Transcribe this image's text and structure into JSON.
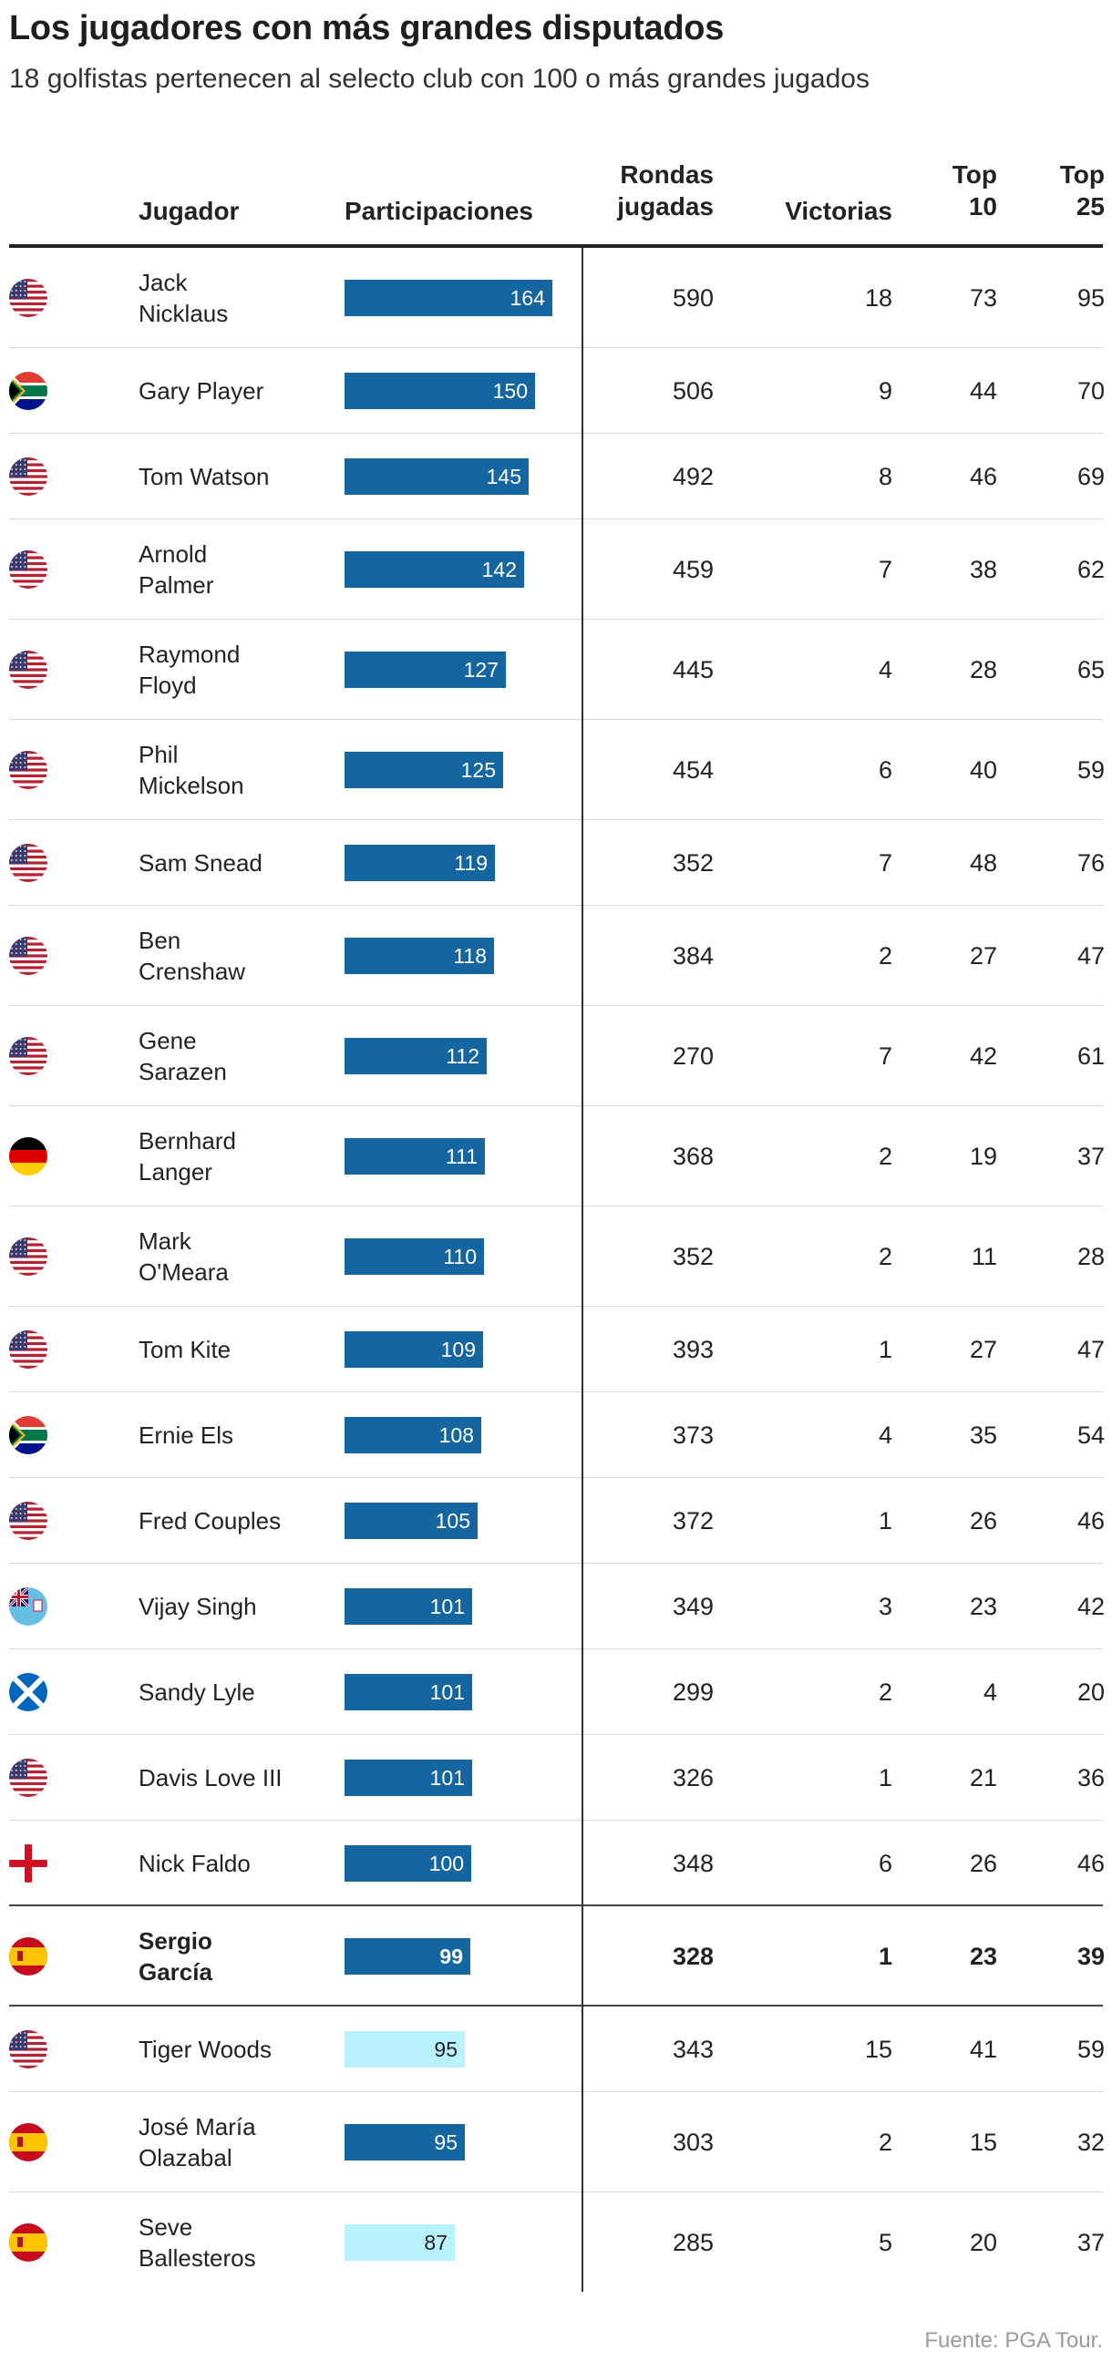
{
  "title": "Los jugadores con más grandes disputados",
  "subtitle": "18 golfistas pertenecen al selecto club con 100 o más grandes jugados",
  "source": "Fuente: PGA Tour.",
  "colors": {
    "bar": "#1565a0",
    "bar_highlight": "#b8f2fc"
  },
  "columns": {
    "jugador": "Jugador",
    "participaciones": "Participaciones",
    "rondas_1": "Rondas",
    "rondas_2": "jugadas",
    "victorias": "Victorias",
    "top10_1": "Top",
    "top10_2": "10",
    "top25_1": "Top",
    "top25_2": "25"
  },
  "chart_data": {
    "type": "table",
    "columns": [
      "Jugador",
      "Participaciones",
      "Rondas jugadas",
      "Victorias",
      "Top 10",
      "Top 25"
    ],
    "rows": [
      {
        "name_lines": [
          "Jack",
          "Nicklaus"
        ],
        "flag": "usa",
        "participaciones": 164,
        "rondas": 590,
        "victorias": 18,
        "top10": 73,
        "top25": 95
      },
      {
        "name_lines": [
          "Gary Player"
        ],
        "flag": "south-africa",
        "participaciones": 150,
        "rondas": 506,
        "victorias": 9,
        "top10": 44,
        "top25": 70
      },
      {
        "name_lines": [
          "Tom Watson"
        ],
        "flag": "usa",
        "participaciones": 145,
        "rondas": 492,
        "victorias": 8,
        "top10": 46,
        "top25": 69
      },
      {
        "name_lines": [
          "Arnold",
          "Palmer"
        ],
        "flag": "usa",
        "participaciones": 142,
        "rondas": 459,
        "victorias": 7,
        "top10": 38,
        "top25": 62
      },
      {
        "name_lines": [
          "Raymond",
          "Floyd"
        ],
        "flag": "usa",
        "participaciones": 127,
        "rondas": 445,
        "victorias": 4,
        "top10": 28,
        "top25": 65
      },
      {
        "name_lines": [
          "Phil",
          "Mickelson"
        ],
        "flag": "usa",
        "participaciones": 125,
        "rondas": 454,
        "victorias": 6,
        "top10": 40,
        "top25": 59
      },
      {
        "name_lines": [
          "Sam Snead"
        ],
        "flag": "usa",
        "participaciones": 119,
        "rondas": 352,
        "victorias": 7,
        "top10": 48,
        "top25": 76
      },
      {
        "name_lines": [
          "Ben",
          "Crenshaw"
        ],
        "flag": "usa",
        "participaciones": 118,
        "rondas": 384,
        "victorias": 2,
        "top10": 27,
        "top25": 47
      },
      {
        "name_lines": [
          "Gene",
          "Sarazen"
        ],
        "flag": "usa",
        "participaciones": 112,
        "rondas": 270,
        "victorias": 7,
        "top10": 42,
        "top25": 61
      },
      {
        "name_lines": [
          "Bernhard",
          "Langer"
        ],
        "flag": "germany",
        "participaciones": 111,
        "rondas": 368,
        "victorias": 2,
        "top10": 19,
        "top25": 37
      },
      {
        "name_lines": [
          "Mark",
          "O'Meara"
        ],
        "flag": "usa",
        "participaciones": 110,
        "rondas": 352,
        "victorias": 2,
        "top10": 11,
        "top25": 28
      },
      {
        "name_lines": [
          "Tom Kite"
        ],
        "flag": "usa",
        "participaciones": 109,
        "rondas": 393,
        "victorias": 1,
        "top10": 27,
        "top25": 47
      },
      {
        "name_lines": [
          "Ernie Els"
        ],
        "flag": "south-africa",
        "participaciones": 108,
        "rondas": 373,
        "victorias": 4,
        "top10": 35,
        "top25": 54
      },
      {
        "name_lines": [
          "Fred Couples"
        ],
        "flag": "usa",
        "participaciones": 105,
        "rondas": 372,
        "victorias": 1,
        "top10": 26,
        "top25": 46
      },
      {
        "name_lines": [
          "Vijay Singh"
        ],
        "flag": "fiji",
        "participaciones": 101,
        "rondas": 349,
        "victorias": 3,
        "top10": 23,
        "top25": 42
      },
      {
        "name_lines": [
          "Sandy Lyle"
        ],
        "flag": "scotland",
        "participaciones": 101,
        "rondas": 299,
        "victorias": 2,
        "top10": 4,
        "top25": 20
      },
      {
        "name_lines": [
          "Davis Love III"
        ],
        "flag": "usa",
        "participaciones": 101,
        "rondas": 326,
        "victorias": 1,
        "top10": 21,
        "top25": 36
      },
      {
        "name_lines": [
          "Nick Faldo"
        ],
        "flag": "england",
        "participaciones": 100,
        "rondas": 348,
        "victorias": 6,
        "top10": 26,
        "top25": 46
      },
      {
        "name_lines": [
          "Sergio",
          "García"
        ],
        "flag": "spain",
        "participaciones": 99,
        "rondas": 328,
        "victorias": 1,
        "top10": 23,
        "top25": 39,
        "emphasis": true
      },
      {
        "name_lines": [
          "Tiger Woods"
        ],
        "flag": "usa",
        "participaciones": 95,
        "rondas": 343,
        "victorias": 15,
        "top10": 41,
        "top25": 59,
        "light": true
      },
      {
        "name_lines": [
          "José María",
          "Olazabal"
        ],
        "flag": "spain",
        "participaciones": 95,
        "rondas": 303,
        "victorias": 2,
        "top10": 15,
        "top25": 32
      },
      {
        "name_lines": [
          "Seve",
          "Ballesteros"
        ],
        "flag": "spain",
        "participaciones": 87,
        "rondas": 285,
        "victorias": 5,
        "top10": 20,
        "top25": 37,
        "light": true
      }
    ]
  }
}
